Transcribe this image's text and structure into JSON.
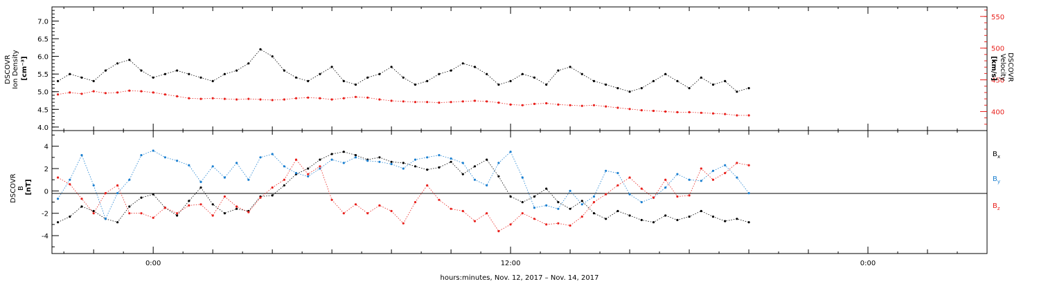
{
  "chart_data": [
    {
      "type": "scatter",
      "panel": "plasma",
      "ylabel_left_lines": [
        "DSCOVR",
        "Ion Density"
      ],
      "ylabel_left_units": "[cm⁻³]",
      "ylabel_right_lines": [
        "DSCOVR",
        "Velocity"
      ],
      "ylabel_right_units": "[km/s]",
      "ylim_left": [
        3.9,
        7.4
      ],
      "ylim_right": [
        370,
        565
      ],
      "yticks_left": [
        "4.0",
        "4.5",
        "5.0",
        "5.5",
        "6.0",
        "6.5",
        "7.0"
      ],
      "yticks_right": [
        "400",
        "450",
        "500",
        "550"
      ],
      "series": [
        {
          "name": "Ion Density",
          "axis": "left",
          "color": "#000000",
          "x": [
            -3.6,
            -3.2,
            -2.8,
            -2.4,
            -2.0,
            -1.6,
            -1.2,
            -0.8,
            -0.4,
            0.0,
            0.4,
            0.8,
            1.2,
            1.6,
            2.0,
            2.4,
            2.8,
            3.2,
            3.6,
            4.0,
            4.4,
            4.8,
            5.2,
            5.6,
            6.0,
            6.4,
            6.8,
            7.2,
            7.6,
            8.0,
            8.4,
            8.8,
            9.2,
            9.6,
            10.0,
            10.4,
            10.8,
            11.2,
            11.6,
            12.0,
            12.4,
            12.8,
            13.2,
            13.6,
            14.0,
            14.4,
            14.8,
            15.2,
            15.6,
            16.0,
            16.4,
            16.8,
            17.2,
            17.6,
            18.0,
            18.4,
            18.8,
            19.2,
            19.6,
            20.0
          ],
          "y": [
            5.2,
            5.3,
            5.5,
            5.4,
            5.3,
            5.6,
            5.8,
            5.9,
            5.6,
            5.4,
            5.5,
            5.6,
            5.5,
            5.4,
            5.3,
            5.5,
            5.6,
            5.8,
            6.2,
            6.0,
            5.6,
            5.4,
            5.3,
            5.5,
            5.7,
            5.3,
            5.2,
            5.4,
            5.5,
            5.7,
            5.4,
            5.2,
            5.3,
            5.5,
            5.6,
            5.8,
            5.7,
            5.5,
            5.2,
            5.3,
            5.5,
            5.4,
            5.2,
            5.6,
            5.7,
            5.5,
            5.3,
            5.2,
            5.1,
            5.0,
            5.1,
            5.3,
            5.5,
            5.3,
            5.1,
            5.4,
            5.2,
            5.3,
            5.0,
            5.1
          ]
        },
        {
          "name": "Velocity",
          "axis": "right",
          "color": "#e8201c",
          "x": [
            -3.6,
            -3.2,
            -2.8,
            -2.4,
            -2.0,
            -1.6,
            -1.2,
            -0.8,
            -0.4,
            0.0,
            0.4,
            0.8,
            1.2,
            1.6,
            2.0,
            2.4,
            2.8,
            3.2,
            3.6,
            4.0,
            4.4,
            4.8,
            5.2,
            5.6,
            6.0,
            6.4,
            6.8,
            7.2,
            7.6,
            8.0,
            8.4,
            8.8,
            9.2,
            9.6,
            10.0,
            10.4,
            10.8,
            11.2,
            11.6,
            12.0,
            12.4,
            12.8,
            13.2,
            13.6,
            14.0,
            14.4,
            14.8,
            15.2,
            15.6,
            16.0,
            16.4,
            16.8,
            17.2,
            17.6,
            18.0,
            18.4,
            18.8,
            19.2,
            19.6,
            20.0
          ],
          "y": [
            425,
            427,
            430,
            428,
            432,
            429,
            430,
            433,
            432,
            430,
            427,
            424,
            421,
            420,
            421,
            420,
            419,
            420,
            419,
            418,
            419,
            421,
            422,
            421,
            419,
            421,
            423,
            422,
            419,
            417,
            416,
            415,
            415,
            414,
            415,
            416,
            417,
            416,
            414,
            411,
            410,
            412,
            413,
            411,
            410,
            409,
            410,
            408,
            406,
            404,
            402,
            401,
            400,
            399,
            399,
            398,
            397,
            396,
            394,
            394
          ]
        }
      ]
    },
    {
      "type": "scatter",
      "panel": "magnetic-field",
      "ylabel_lines": [
        "DSCOVR",
        "B"
      ],
      "ylabel_units": "[nT]",
      "ylim": [
        -5.6,
        5.4
      ],
      "yticks": [
        "-4",
        "-2",
        "0",
        "2",
        "4"
      ],
      "xlabel": "hours:minutes, Nov. 12, 2017 – Nov. 14, 2017",
      "xlim": [
        -3.4,
        28.0
      ],
      "xticks": [
        {
          "value": 0,
          "label": "0:00"
        },
        {
          "value": 12,
          "label": "12:00"
        },
        {
          "value": 24,
          "label": "0:00"
        }
      ],
      "legend_position": "right",
      "series": [
        {
          "name": "Bx",
          "legend_main": "B",
          "legend_sub": "x",
          "color": "#000000",
          "x": [
            -3.6,
            -3.2,
            -2.8,
            -2.4,
            -2.0,
            -1.6,
            -1.2,
            -0.8,
            -0.4,
            0.0,
            0.4,
            0.8,
            1.2,
            1.6,
            2.0,
            2.4,
            2.8,
            3.2,
            3.6,
            4.0,
            4.4,
            4.8,
            5.2,
            5.6,
            6.0,
            6.4,
            6.8,
            7.2,
            7.6,
            8.0,
            8.4,
            8.8,
            9.2,
            9.6,
            10.0,
            10.4,
            10.8,
            11.2,
            11.6,
            12.0,
            12.4,
            12.8,
            13.2,
            13.6,
            14.0,
            14.4,
            14.8,
            15.2,
            15.6,
            16.0,
            16.4,
            16.8,
            17.2,
            17.6,
            18.0,
            18.4,
            18.8,
            19.2,
            19.6,
            20.0
          ],
          "y": [
            -3.0,
            -2.8,
            -2.3,
            -1.4,
            -1.8,
            -2.5,
            -2.8,
            -1.4,
            -0.6,
            -0.3,
            -1.5,
            -2.2,
            -0.9,
            0.3,
            -1.2,
            -2.0,
            -1.6,
            -1.8,
            -0.5,
            -0.4,
            0.5,
            1.5,
            2.0,
            2.8,
            3.3,
            3.5,
            3.2,
            2.8,
            3.0,
            2.6,
            2.5,
            2.2,
            1.9,
            2.1,
            2.6,
            1.5,
            2.2,
            2.8,
            1.3,
            -0.5,
            -1.0,
            -0.5,
            0.2,
            -1.0,
            -1.6,
            -0.9,
            -2.0,
            -2.5,
            -1.8,
            -2.2,
            -2.6,
            -2.8,
            -2.2,
            -2.6,
            -2.3,
            -1.8,
            -2.3,
            -2.7,
            -2.5,
            -2.8
          ]
        },
        {
          "name": "By",
          "legend_main": "B",
          "legend_sub": "y",
          "color": "#1a7fd0",
          "x": [
            -3.6,
            -3.2,
            -2.8,
            -2.4,
            -2.0,
            -1.6,
            -1.2,
            -0.8,
            -0.4,
            0.0,
            0.4,
            0.8,
            1.2,
            1.6,
            2.0,
            2.4,
            2.8,
            3.2,
            3.6,
            4.0,
            4.4,
            4.8,
            5.2,
            5.6,
            6.0,
            6.4,
            6.8,
            7.2,
            7.6,
            8.0,
            8.4,
            8.8,
            9.2,
            9.6,
            10.0,
            10.4,
            10.8,
            11.2,
            11.6,
            12.0,
            12.4,
            12.8,
            13.2,
            13.6,
            14.0,
            14.4,
            14.8,
            15.2,
            15.6,
            16.0,
            16.4,
            16.8,
            17.2,
            17.6,
            18.0,
            18.4,
            18.8,
            19.2,
            19.6,
            20.0
          ],
          "y": [
            -0.5,
            -0.7,
            1.0,
            3.2,
            0.5,
            -2.5,
            -0.2,
            1.0,
            3.2,
            3.6,
            3.0,
            2.7,
            2.3,
            0.8,
            2.2,
            1.2,
            2.5,
            1.0,
            3.0,
            3.3,
            2.2,
            1.6,
            1.3,
            2.0,
            2.8,
            2.5,
            3.0,
            2.7,
            2.6,
            2.4,
            2.0,
            2.8,
            3.0,
            3.2,
            2.9,
            2.5,
            1.0,
            0.5,
            2.5,
            3.5,
            1.2,
            -1.5,
            -1.3,
            -1.6,
            0.0,
            -1.2,
            -0.5,
            1.8,
            1.6,
            -0.3,
            -1.0,
            -0.6,
            0.3,
            1.5,
            1.0,
            0.9,
            1.8,
            2.3,
            1.2,
            -0.2
          ]
        },
        {
          "name": "Bz",
          "legend_main": "B",
          "legend_sub": "z",
          "color": "#e8201c",
          "x": [
            -3.6,
            -3.2,
            -2.8,
            -2.4,
            -2.0,
            -1.6,
            -1.2,
            -0.8,
            -0.4,
            0.0,
            0.4,
            0.8,
            1.2,
            1.6,
            2.0,
            2.4,
            2.8,
            3.2,
            3.6,
            4.0,
            4.4,
            4.8,
            5.2,
            5.6,
            6.0,
            6.4,
            6.8,
            7.2,
            7.6,
            8.0,
            8.4,
            8.8,
            9.2,
            9.6,
            10.0,
            10.4,
            10.8,
            11.2,
            11.6,
            12.0,
            12.4,
            12.8,
            13.2,
            13.6,
            14.0,
            14.4,
            14.8,
            15.2,
            15.6,
            16.0,
            16.4,
            16.8,
            17.2,
            17.6,
            18.0,
            18.4,
            18.8,
            19.2,
            19.6,
            20.0
          ],
          "y": [
            0.5,
            1.2,
            0.6,
            -0.7,
            -2.0,
            -0.2,
            0.5,
            -2.0,
            -2.0,
            -2.4,
            -1.5,
            -2.0,
            -1.3,
            -1.2,
            -2.2,
            -0.5,
            -1.4,
            -1.9,
            -0.6,
            0.3,
            1.0,
            2.8,
            1.5,
            2.2,
            -0.8,
            -2.0,
            -1.2,
            -2.0,
            -1.3,
            -1.8,
            -2.9,
            -1.0,
            0.5,
            -0.8,
            -1.6,
            -1.8,
            -2.7,
            -2.0,
            -3.6,
            -3.0,
            -2.0,
            -2.5,
            -3.0,
            -2.9,
            -3.1,
            -2.3,
            -1.0,
            -0.3,
            0.5,
            1.2,
            0.2,
            -0.6,
            1.0,
            -0.5,
            -0.4,
            2.0,
            1.0,
            1.6,
            2.5,
            2.3
          ]
        }
      ]
    }
  ]
}
